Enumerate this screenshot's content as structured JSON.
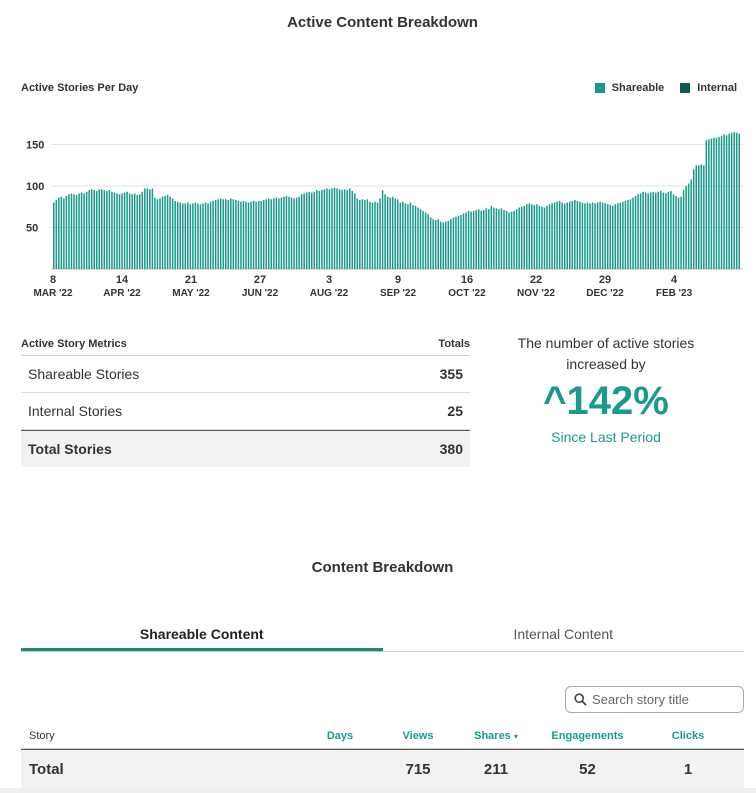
{
  "header": {
    "title": "Active Content Breakdown"
  },
  "chart": {
    "label": "Active Stories Per Day",
    "legend": [
      {
        "name": "Shareable",
        "color": "#1a9a8d"
      },
      {
        "name": "Internal",
        "color": "#0f5a52"
      }
    ]
  },
  "chart_data": {
    "type": "bar",
    "title": "",
    "ylabel": "",
    "xlabel": "",
    "ylim": [
      0,
      165
    ],
    "yticks": [
      50,
      100,
      150
    ],
    "grid": true,
    "legend_position": "top-right",
    "series": [
      {
        "name": "Shareable",
        "color": "#1a9a8d",
        "values": [
          80,
          83,
          86,
          87,
          85,
          88,
          90,
          91,
          90,
          89,
          91,
          92,
          91,
          93,
          95,
          96,
          95,
          94,
          96,
          96,
          95,
          94,
          95,
          93,
          92,
          91,
          90,
          91,
          92,
          93,
          91,
          90,
          91,
          89,
          90,
          93,
          97,
          97,
          96,
          97,
          86,
          84,
          85,
          87,
          88,
          89,
          87,
          85,
          82,
          81,
          80,
          79,
          79,
          80,
          78,
          79,
          80,
          79,
          78,
          79,
          80,
          79,
          81,
          82,
          83,
          84,
          85,
          84,
          84,
          83,
          85,
          84,
          83,
          82,
          81,
          82,
          81,
          80,
          81,
          82,
          81,
          82,
          82,
          83,
          84,
          85,
          84,
          85,
          86,
          85,
          86,
          87,
          88,
          87,
          86,
          85,
          86,
          87,
          90,
          91,
          92,
          93,
          92,
          93,
          95,
          94,
          95,
          96,
          97,
          96,
          97,
          98,
          97,
          96,
          95,
          96,
          95,
          97,
          94,
          91,
          85,
          83,
          84,
          83,
          84,
          81,
          80,
          81,
          80,
          85,
          95,
          90,
          87,
          86,
          87,
          85,
          84,
          80,
          81,
          79,
          78,
          80,
          77,
          76,
          74,
          72,
          70,
          68,
          66,
          62,
          60,
          59,
          60,
          57,
          56,
          57,
          58,
          60,
          62,
          63,
          64,
          65,
          67,
          68,
          70,
          69,
          70,
          71,
          72,
          70,
          71,
          73,
          72,
          76,
          74,
          73,
          72,
          73,
          71,
          70,
          68,
          69,
          70,
          72,
          74,
          75,
          76,
          78,
          79,
          78,
          77,
          78,
          76,
          75,
          74,
          76,
          78,
          79,
          80,
          81,
          82,
          80,
          79,
          80,
          81,
          82,
          83,
          82,
          81,
          80,
          79,
          80,
          79,
          80,
          79,
          80,
          81,
          80,
          79,
          78,
          77,
          76,
          78,
          79,
          80,
          81,
          82,
          83,
          84,
          86,
          88,
          90,
          91,
          93,
          92,
          91,
          92,
          93,
          92,
          93,
          94,
          92,
          91,
          93,
          94,
          90,
          88,
          86,
          87,
          95,
          100,
          103,
          108,
          120,
          125,
          125,
          126,
          125,
          155,
          156,
          157,
          158,
          158,
          159,
          160,
          162,
          161,
          163,
          164,
          165,
          164,
          163
        ]
      },
      {
        "name": "Internal",
        "color": "#0f5a52",
        "values": []
      }
    ],
    "x_ticks": [
      {
        "day": "8",
        "month": "MAR '22"
      },
      {
        "day": "14",
        "month": "APR '22"
      },
      {
        "day": "21",
        "month": "MAY '22"
      },
      {
        "day": "27",
        "month": "JUN '22"
      },
      {
        "day": "3",
        "month": "AUG '22"
      },
      {
        "day": "9",
        "month": "SEP '22"
      },
      {
        "day": "16",
        "month": "OCT '22"
      },
      {
        "day": "22",
        "month": "NOV '22"
      },
      {
        "day": "29",
        "month": "DEC '22"
      },
      {
        "day": "4",
        "month": "FEB '23"
      }
    ]
  },
  "metrics": {
    "header_label": "Active Story Metrics",
    "header_totals": "Totals",
    "rows": [
      {
        "label": "Shareable Stories",
        "value": "355"
      },
      {
        "label": "Internal Stories",
        "value": "25"
      }
    ],
    "total": {
      "label": "Total Stories",
      "value": "380"
    }
  },
  "increase": {
    "desc": "The number of active stories increased by",
    "pct": "^142%",
    "since": "Since Last Period",
    "color": "#1a9a8d"
  },
  "breakdown": {
    "title": "Content Breakdown",
    "tabs": [
      {
        "label": "Shareable Content",
        "active": true
      },
      {
        "label": "Internal Content",
        "active": false
      }
    ],
    "search": {
      "placeholder": "Search story title"
    },
    "columns": {
      "story": "Story",
      "days": "Days",
      "views": "Views",
      "shares": "Shares",
      "engagements": "Engagements",
      "clicks": "Clicks"
    },
    "total_row": {
      "label": "Total",
      "days": "",
      "views": "715",
      "shares": "211",
      "engagements": "52",
      "clicks": "1"
    }
  }
}
